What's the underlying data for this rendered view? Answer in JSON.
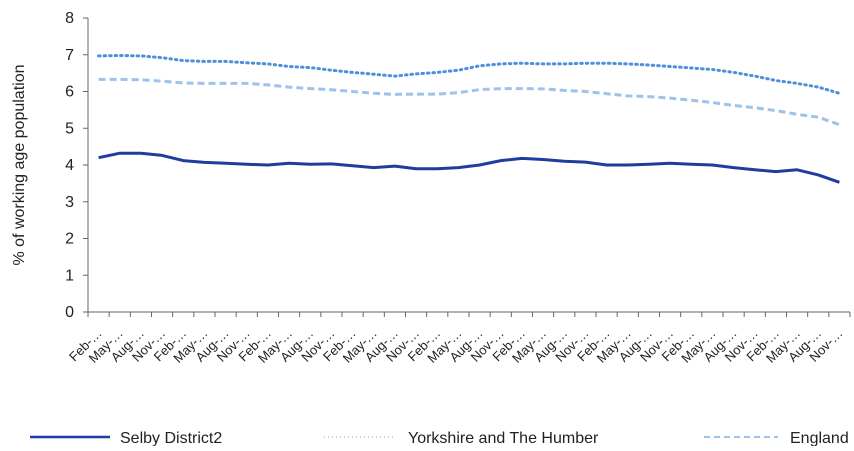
{
  "chart_data": {
    "type": "line",
    "ylabel": "% of working age population",
    "xlabel": "",
    "ylim": [
      0,
      8
    ],
    "yticks": [
      0,
      1,
      2,
      3,
      4,
      5,
      6,
      7,
      8
    ],
    "categories": [
      "Feb-…",
      "May-…",
      "Aug-…",
      "Nov-…",
      "Feb-…",
      "May-…",
      "Aug-…",
      "Nov-…",
      "Feb-…",
      "May-…",
      "Aug-…",
      "Nov-…",
      "Feb-…",
      "May-…",
      "Aug-…",
      "Nov-…",
      "Feb-…",
      "May-…",
      "Aug-…",
      "Nov-…",
      "Feb-…",
      "May-…",
      "Aug-…",
      "Nov-…",
      "Feb-…",
      "May-…",
      "Aug-…",
      "Nov-…",
      "Feb-…",
      "May-…",
      "Aug-…",
      "Nov-…",
      "Feb-…",
      "May-…",
      "Aug-…",
      "Nov-…"
    ],
    "legend_position": "bottom",
    "series": [
      {
        "name": "Selby District2",
        "color": "#1f3c9f",
        "style": "solid",
        "values": [
          4.2,
          4.32,
          4.32,
          4.26,
          4.12,
          4.07,
          4.05,
          4.02,
          4.0,
          4.05,
          4.02,
          4.03,
          3.98,
          3.93,
          3.97,
          3.9,
          3.9,
          3.93,
          4.0,
          4.12,
          4.18,
          4.15,
          4.1,
          4.08,
          4.0,
          4.0,
          4.02,
          4.05,
          4.02,
          4.0,
          3.93,
          3.87,
          3.82,
          3.87,
          3.73,
          3.53
        ]
      },
      {
        "name": "Yorkshire and The Humber",
        "color": "#4e8fdc",
        "style": "dotted",
        "values": [
          6.97,
          6.98,
          6.97,
          6.92,
          6.84,
          6.82,
          6.82,
          6.78,
          6.75,
          6.68,
          6.65,
          6.58,
          6.52,
          6.47,
          6.42,
          6.48,
          6.52,
          6.58,
          6.7,
          6.75,
          6.77,
          6.75,
          6.75,
          6.77,
          6.77,
          6.75,
          6.72,
          6.68,
          6.64,
          6.6,
          6.52,
          6.42,
          6.3,
          6.22,
          6.12,
          5.95
        ]
      },
      {
        "name": "England",
        "color": "#9dc3ec",
        "style": "dashed",
        "values": [
          6.33,
          6.33,
          6.32,
          6.28,
          6.23,
          6.22,
          6.22,
          6.22,
          6.18,
          6.12,
          6.08,
          6.05,
          6.0,
          5.95,
          5.92,
          5.93,
          5.93,
          5.97,
          6.05,
          6.08,
          6.08,
          6.07,
          6.03,
          6.0,
          5.94,
          5.88,
          5.86,
          5.82,
          5.76,
          5.7,
          5.62,
          5.56,
          5.48,
          5.38,
          5.3,
          5.1
        ]
      }
    ]
  }
}
